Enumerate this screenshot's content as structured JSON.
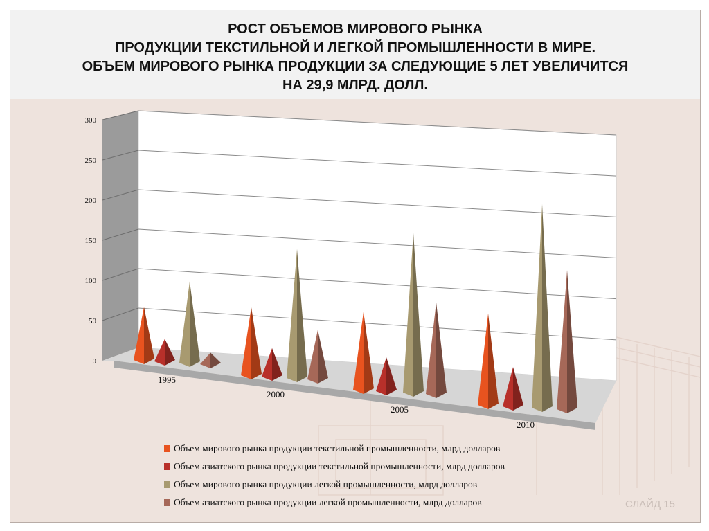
{
  "slide": {
    "title_lines": [
      "РОСТ ОБЪЕМОВ МИРОВОГО РЫНКА",
      "ПРОДУКЦИИ ТЕКСТИЛЬНОЙ И ЛЕГКОЙ ПРОМЫШЛЕННОСТИ  В МИРЕ.",
      "ОБЪЕМ МИРОВОГО РЫНКА ПРОДУКЦИИ ЗА СЛЕДУЮЩИЕ 5 ЛЕТ УВЕЛИЧИТСЯ",
      "НА 29,9 МЛРД. ДОЛЛ."
    ],
    "slide_number": "СЛАЙД 15"
  },
  "chart_data": {
    "type": "bar",
    "style": "3d-pyramid",
    "categories": [
      "1995",
      "2000",
      "2005",
      "2010"
    ],
    "ylim": [
      0,
      300
    ],
    "yticks": [
      "0",
      "50",
      "100",
      "150",
      "200",
      "250",
      "300"
    ],
    "grid": true,
    "legend_position": "bottom",
    "series": [
      {
        "name": "Объем мирового рынка продукции текстильной промышленности, млрд долларов",
        "color": "#e8531f",
        "values": [
          78,
          100,
          115,
          135
        ]
      },
      {
        "name": "Объем азиатского рынка продукции текстильной промышленности, млрд долларов",
        "color": "#b8302a",
        "values": [
          33,
          42,
          50,
          58
        ]
      },
      {
        "name": "Объем мирового рынка продукции легкой промышленности, млрд долларов",
        "color": "#a89a70",
        "values": [
          120,
          190,
          235,
          300
        ]
      },
      {
        "name": "Объем азиатского рынка продукции легкой промышленности, млрд долларов",
        "color": "#a66858",
        "values": [
          17,
          73,
          135,
          205
        ]
      }
    ]
  }
}
